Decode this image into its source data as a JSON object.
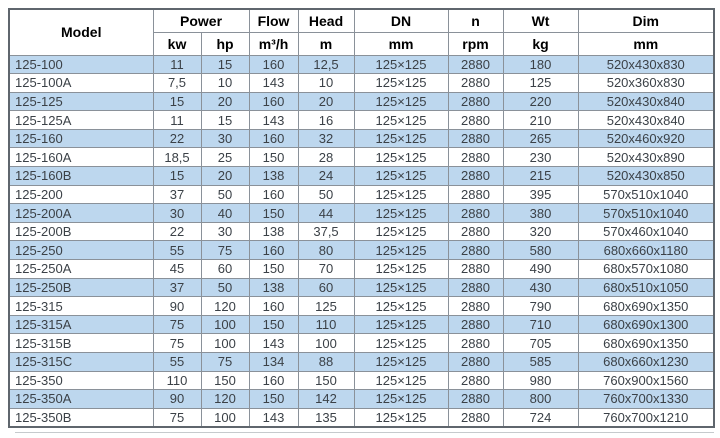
{
  "table": {
    "header": {
      "model": "Model",
      "power": "Power",
      "flow": "Flow",
      "head": "Head",
      "dn": "DN",
      "n": "n",
      "wt": "Wt",
      "dim": "Dim",
      "units": {
        "kw": "kw",
        "hp": "hp",
        "flow": "m³/h",
        "head": "m",
        "dn": "mm",
        "n": "rpm",
        "wt": "kg",
        "dim": "mm"
      }
    },
    "column_ids": [
      "model",
      "power-kw",
      "power-hp",
      "flow",
      "head",
      "dn",
      "n",
      "wt",
      "dim"
    ],
    "rows": [
      [
        "125-100",
        "11",
        "15",
        "160",
        "12,5",
        "125×125",
        "2880",
        "180",
        "520x430x830"
      ],
      [
        "125-100A",
        "7,5",
        "10",
        "143",
        "10",
        "125×125",
        "2880",
        "125",
        "520x360x830"
      ],
      [
        "125-125",
        "15",
        "20",
        "160",
        "20",
        "125×125",
        "2880",
        "220",
        "520x430x840"
      ],
      [
        "125-125A",
        "11",
        "15",
        "143",
        "16",
        "125×125",
        "2880",
        "210",
        "520x430x840"
      ],
      [
        "125-160",
        "22",
        "30",
        "160",
        "32",
        "125×125",
        "2880",
        "265",
        "520x460x920"
      ],
      [
        "125-160A",
        "18,5",
        "25",
        "150",
        "28",
        "125×125",
        "2880",
        "230",
        "520x430x890"
      ],
      [
        "125-160B",
        "15",
        "20",
        "138",
        "24",
        "125×125",
        "2880",
        "215",
        "520x430x850"
      ],
      [
        "125-200",
        "37",
        "50",
        "160",
        "50",
        "125×125",
        "2880",
        "395",
        "570x510x1040"
      ],
      [
        "125-200A",
        "30",
        "40",
        "150",
        "44",
        "125×125",
        "2880",
        "380",
        "570x510x1040"
      ],
      [
        "125-200B",
        "22",
        "30",
        "138",
        "37,5",
        "125×125",
        "2880",
        "320",
        "570x460x1040"
      ],
      [
        "125-250",
        "55",
        "75",
        "160",
        "80",
        "125×125",
        "2880",
        "580",
        "680x660x1180"
      ],
      [
        "125-250A",
        "45",
        "60",
        "150",
        "70",
        "125×125",
        "2880",
        "490",
        "680x570x1080"
      ],
      [
        "125-250B",
        "37",
        "50",
        "138",
        "60",
        "125×125",
        "2880",
        "430",
        "680x510x1050"
      ],
      [
        "125-315",
        "90",
        "120",
        "160",
        "125",
        "125×125",
        "2880",
        "790",
        "680x690x1350"
      ],
      [
        "125-315A",
        "75",
        "100",
        "150",
        "110",
        "125×125",
        "2880",
        "710",
        "680x690x1300"
      ],
      [
        "125-315B",
        "75",
        "100",
        "143",
        "100",
        "125×125",
        "2880",
        "705",
        "680x690x1350"
      ],
      [
        "125-315C",
        "55",
        "75",
        "134",
        "88",
        "125×125",
        "2880",
        "585",
        "680x660x1230"
      ],
      [
        "125-350",
        "110",
        "150",
        "160",
        "150",
        "125×125",
        "2880",
        "980",
        "760x900x1560"
      ],
      [
        "125-350A",
        "90",
        "120",
        "150",
        "142",
        "125×125",
        "2880",
        "800",
        "760x700x1330"
      ],
      [
        "125-350B",
        "75",
        "100",
        "143",
        "135",
        "125×125",
        "2880",
        "724",
        "760x700x1210"
      ]
    ],
    "colors": {
      "row_alt_background": "#bdd7ee",
      "row_background": "#ffffff",
      "data_text": "#3b4147",
      "header_text": "#000000",
      "gridline": "#8a9199",
      "outer_border": "#5f666d"
    }
  }
}
